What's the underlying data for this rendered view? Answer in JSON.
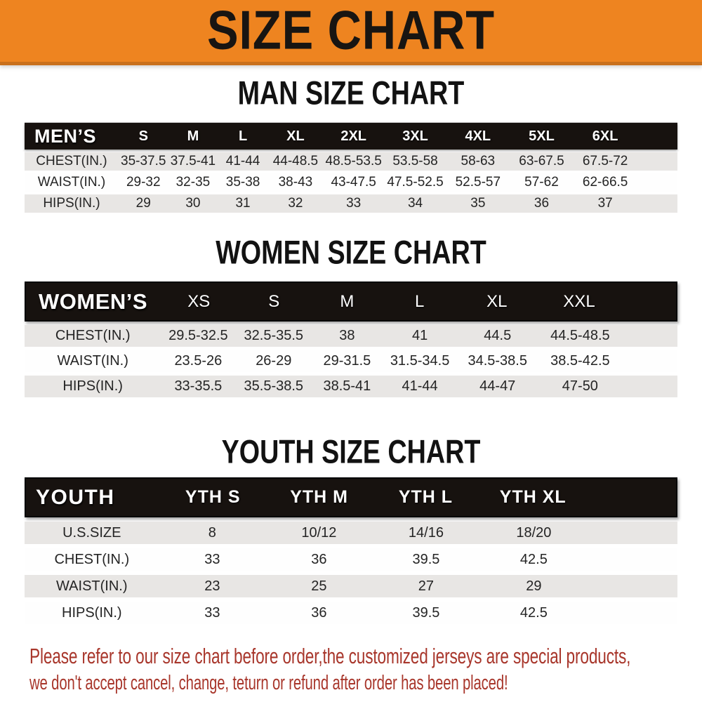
{
  "banner": {
    "title": "SIZE CHART",
    "background_color": "#ee8420",
    "title_color": "#181512"
  },
  "sections": [
    {
      "title": "MAN SIZE CHART",
      "header_label": "MEN’S",
      "columns": [
        "S",
        "M",
        "L",
        "XL",
        "2XL",
        "3XL",
        "4XL",
        "5XL",
        "6XL"
      ],
      "rows": [
        {
          "label": "CHEST(IN.)",
          "values": [
            "35-37.5",
            "37.5-41",
            "41-44",
            "44-48.5",
            "48.5-53.5",
            "53.5-58",
            "58-63",
            "63-67.5",
            "67.5-72"
          ]
        },
        {
          "label": "WAIST(IN.)",
          "values": [
            "29-32",
            "32-35",
            "35-38",
            "38-43",
            "43-47.5",
            "47.5-52.5",
            "52.5-57",
            "57-62",
            "62-66.5"
          ]
        },
        {
          "label": "HIPS(IN.)",
          "values": [
            "29",
            "30",
            "31",
            "32",
            "33",
            "34",
            "35",
            "36",
            "37"
          ]
        }
      ]
    },
    {
      "title": "WOMEN SIZE CHART",
      "header_label": "WOMEN’S",
      "columns": [
        "XS",
        "S",
        "M",
        "L",
        "XL",
        "XXL"
      ],
      "rows": [
        {
          "label": "CHEST(IN.)",
          "values": [
            "29.5-32.5",
            "32.5-35.5",
            "38",
            "41",
            "44.5",
            "44.5-48.5"
          ]
        },
        {
          "label": "WAIST(IN.)",
          "values": [
            "23.5-26",
            "26-29",
            "29-31.5",
            "31.5-34.5",
            "34.5-38.5",
            "38.5-42.5"
          ]
        },
        {
          "label": "HIPS(IN.)",
          "values": [
            "33-35.5",
            "35.5-38.5",
            "38.5-41",
            "41-44",
            "44-47",
            "47-50"
          ]
        }
      ]
    },
    {
      "title": "YOUTH SIZE CHART",
      "header_label": "YOUTH",
      "columns": [
        "YTH S",
        "YTH M",
        "YTH L",
        "YTH XL"
      ],
      "rows": [
        {
          "label": "U.S.SIZE",
          "values": [
            "8",
            "10/12",
            "14/16",
            "18/20"
          ]
        },
        {
          "label": "CHEST(IN.)",
          "values": [
            "33",
            "36",
            "39.5",
            "42.5"
          ]
        },
        {
          "label": "WAIST(IN.)",
          "values": [
            "23",
            "25",
            "27",
            "29"
          ]
        },
        {
          "label": "HIPS(IN.)",
          "values": [
            "33",
            "36",
            "39.5",
            "42.5"
          ]
        }
      ]
    }
  ],
  "footer": {
    "lines": [
      "Please refer to our size chart before order,the customized jerseys are special products,",
      "we don't accept cancel, change, teturn or refund after order has been placed!"
    ],
    "text_color": "#a8362b"
  },
  "colors": {
    "banner_orange": "#ee8420",
    "header_bar_black": "#17120f",
    "row_gray": "#e8e6e4",
    "row_white": "#fefefe",
    "footer_red": "#a8362b"
  }
}
